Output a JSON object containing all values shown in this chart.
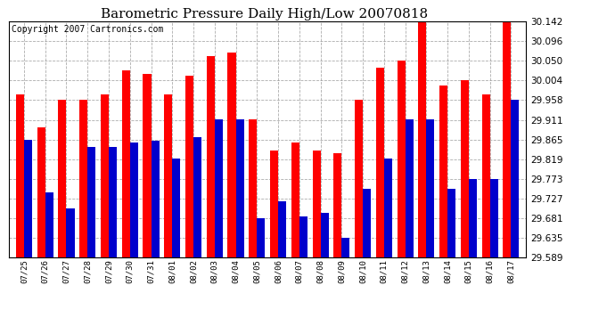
{
  "title": "Barometric Pressure Daily High/Low 20070818",
  "copyright": "Copyright 2007 Cartronics.com",
  "categories": [
    "07/25",
    "07/26",
    "07/27",
    "07/28",
    "07/29",
    "07/30",
    "07/31",
    "08/01",
    "08/02",
    "08/03",
    "08/04",
    "08/05",
    "08/06",
    "08/07",
    "08/08",
    "08/09",
    "08/10",
    "08/11",
    "08/12",
    "08/13",
    "08/14",
    "08/15",
    "08/16",
    "08/17"
  ],
  "highs": [
    29.972,
    29.893,
    29.958,
    29.958,
    29.972,
    30.027,
    30.02,
    29.972,
    30.015,
    30.062,
    30.07,
    29.912,
    29.84,
    29.858,
    29.84,
    29.833,
    29.958,
    30.035,
    30.05,
    30.142,
    29.993,
    30.004,
    29.972,
    30.142
  ],
  "lows": [
    29.865,
    29.742,
    29.703,
    29.848,
    29.848,
    29.858,
    29.862,
    29.82,
    29.87,
    29.912,
    29.912,
    29.681,
    29.72,
    29.685,
    29.693,
    29.635,
    29.75,
    29.82,
    29.912,
    29.912,
    29.749,
    29.773,
    29.773,
    29.958
  ],
  "bar_color_high": "#ff0000",
  "bar_color_low": "#0000cc",
  "background_color": "#ffffff",
  "plot_bg_color": "#ffffff",
  "grid_color": "#888888",
  "ymin": 29.589,
  "ymax": 30.142,
  "yticks": [
    29.589,
    29.635,
    29.681,
    29.727,
    29.773,
    29.819,
    29.865,
    29.911,
    29.958,
    30.004,
    30.05,
    30.096,
    30.142
  ],
  "title_fontsize": 11,
  "copyright_fontsize": 7,
  "bar_width": 0.38
}
